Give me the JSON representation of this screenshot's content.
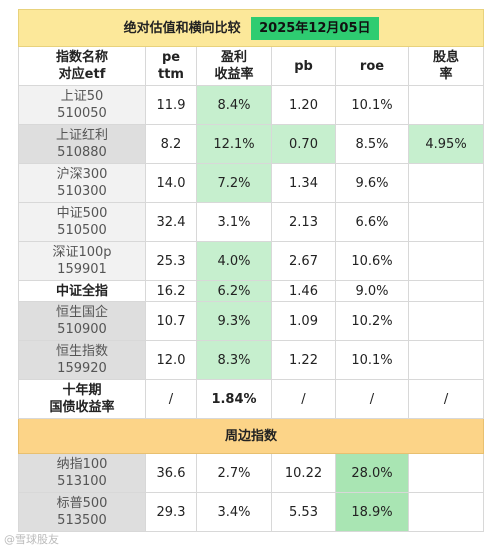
{
  "header": {
    "title": "绝对估值和横向比较",
    "date": "2025年12月05日"
  },
  "columns": [
    {
      "l1": "指数名称",
      "l2": "对应etf"
    },
    {
      "l1": "pe",
      "l2": "ttm"
    },
    {
      "l1": "盈利",
      "l2": "收益率"
    },
    {
      "l1": "pb",
      "l2": ""
    },
    {
      "l1": "roe",
      "l2": ""
    },
    {
      "l1": "股息",
      "l2": "率"
    }
  ],
  "rows": [
    {
      "name": "上证50",
      "code": "510050",
      "pe": "11.9",
      "yield": "8.4%",
      "pb": "1.20",
      "roe": "10.1%",
      "div": ""
    },
    {
      "name": "上证红利",
      "code": "510880",
      "pe": "8.2",
      "yield": "12.1%",
      "pb": "0.70",
      "roe": "8.5%",
      "div": "4.95%"
    },
    {
      "name": "沪深300",
      "code": "510300",
      "pe": "14.0",
      "yield": "7.2%",
      "pb": "1.34",
      "roe": "9.6%",
      "div": ""
    },
    {
      "name": "中证500",
      "code": "510500",
      "pe": "32.4",
      "yield": "3.1%",
      "pb": "2.13",
      "roe": "6.6%",
      "div": ""
    },
    {
      "name": "深证100p",
      "code": "159901",
      "pe": "25.3",
      "yield": "4.0%",
      "pb": "2.67",
      "roe": "10.6%",
      "div": ""
    },
    {
      "name": "中证全指",
      "pe": "16.2",
      "yield": "6.2%",
      "pb": "1.46",
      "roe": "9.0%",
      "div": ""
    },
    {
      "name": "恒生国企",
      "code": "510900",
      "pe": "10.7",
      "yield": "9.3%",
      "pb": "1.09",
      "roe": "10.2%",
      "div": ""
    },
    {
      "name": "恒生指数",
      "code": "159920",
      "pe": "12.0",
      "yield": "8.3%",
      "pb": "1.22",
      "roe": "10.1%",
      "div": ""
    },
    {
      "name": "十年期",
      "code": "国债收益率",
      "pe": "/",
      "yield": "1.84%",
      "pb": "/",
      "roe": "/",
      "div": "/"
    }
  ],
  "section": {
    "title": "周边指数"
  },
  "peripheral": [
    {
      "name": "纳指100",
      "code": "513100",
      "pe": "36.6",
      "yield": "2.7%",
      "pb": "10.22",
      "roe": "28.0%",
      "div": ""
    },
    {
      "name": "标普500",
      "code": "513500",
      "pe": "29.3",
      "yield": "3.4%",
      "pb": "5.53",
      "roe": "18.9%",
      "div": ""
    }
  ],
  "watermark": "@雪球股友"
}
